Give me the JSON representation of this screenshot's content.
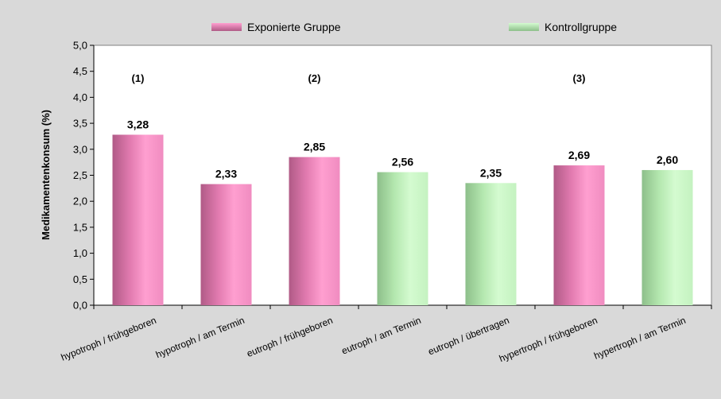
{
  "chart_data": {
    "type": "bar",
    "ylabel": "Medikamentenkonsum (%)",
    "ylim": [
      0,
      5
    ],
    "ytick_step": 0.5,
    "ytick_labels": [
      "0,0",
      "0,5",
      "1,0",
      "1,5",
      "2,0",
      "2,5",
      "3,0",
      "3,5",
      "4,0",
      "4,5",
      "5,0"
    ],
    "grid": false,
    "legend_position": "top",
    "legend": [
      {
        "name": "Exponierte Gruppe",
        "color": "#e87bb0"
      },
      {
        "name": "Kontrollgruppe",
        "color": "#b5e8b0"
      }
    ],
    "categories": [
      "hypotroph / frühgeboren",
      "hypotroph / am Termin",
      "eutroph / frühgeboren",
      "eutroph / am Termin",
      "eutroph / übertragen",
      "hypertroph / frühgeboren",
      "hypertroph / am Termin"
    ],
    "values": [
      3.28,
      2.33,
      2.85,
      2.56,
      2.35,
      2.69,
      2.6
    ],
    "value_labels": [
      "3,28",
      "2,33",
      "2,85",
      "2,56",
      "2,35",
      "2,69",
      "2,60"
    ],
    "bar_group": [
      0,
      0,
      0,
      1,
      1,
      0,
      1
    ],
    "annotations": [
      {
        "text": "(1)",
        "category_index": 0,
        "y": 4.3
      },
      {
        "text": "(2)",
        "category_index": 2,
        "y": 4.3
      },
      {
        "text": "(3)",
        "category_index": 5,
        "y": 4.3
      }
    ]
  }
}
